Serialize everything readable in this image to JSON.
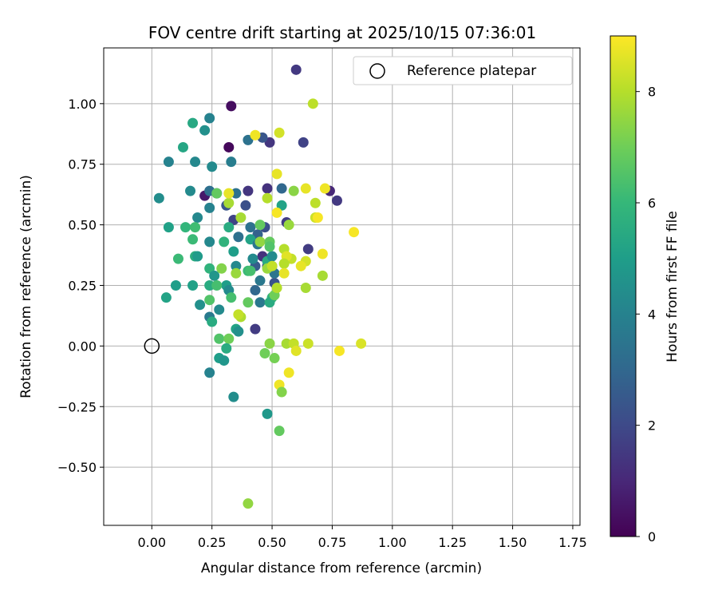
{
  "chart_data": {
    "type": "scatter",
    "title": "FOV centre drift starting at 2025/10/15 07:36:01",
    "xlabel": "Angular distance from reference (arcmin)",
    "ylabel": "Rotation from reference (arcmin)",
    "xlim": [
      -0.2,
      1.78
    ],
    "ylim": [
      -0.74,
      1.23
    ],
    "grid": true,
    "x_ticks": [
      0.0,
      0.25,
      0.5,
      0.75,
      1.0,
      1.25,
      1.5,
      1.75
    ],
    "x_tick_labels": [
      "0.00",
      "0.25",
      "0.50",
      "0.75",
      "1.00",
      "1.25",
      "1.50",
      "1.75"
    ],
    "y_ticks": [
      -0.5,
      -0.25,
      0.0,
      0.25,
      0.5,
      0.75,
      1.0
    ],
    "y_tick_labels": [
      "−0.50",
      "−0.25",
      "0.00",
      "0.25",
      "0.50",
      "0.75",
      "1.00"
    ],
    "legend": {
      "location": "top-right",
      "entries": [
        {
          "label": "Reference platepar",
          "marker": "open-circle"
        }
      ]
    },
    "reference_point": {
      "x": 0.0,
      "y": 0.0
    },
    "colorbar": {
      "label": "Hours from first FF file",
      "range": [
        0,
        9
      ],
      "ticks": [
        0,
        2,
        4,
        6,
        8
      ],
      "tick_labels": [
        "0",
        "2",
        "4",
        "6",
        "8"
      ],
      "colormap": "viridis",
      "stops": [
        "#440154",
        "#482878",
        "#3e4a89",
        "#31688e",
        "#26828e",
        "#1f9e89",
        "#35b779",
        "#6ece58",
        "#b5de2b",
        "#fde725"
      ]
    },
    "points": [
      {
        "x": 0.6,
        "y": 1.14,
        "c": 1.5
      },
      {
        "x": 0.33,
        "y": 0.99,
        "c": 0.3
      },
      {
        "x": 0.32,
        "y": 0.82,
        "c": 0.2
      },
      {
        "x": 0.63,
        "y": 0.84,
        "c": 1.8
      },
      {
        "x": 0.49,
        "y": 0.84,
        "c": 1.4
      },
      {
        "x": 0.46,
        "y": 0.86,
        "c": 2.4
      },
      {
        "x": 0.22,
        "y": 0.62,
        "c": 0.6
      },
      {
        "x": 0.4,
        "y": 0.64,
        "c": 1.4
      },
      {
        "x": 0.48,
        "y": 0.65,
        "c": 1.3
      },
      {
        "x": 0.74,
        "y": 0.64,
        "c": 1.0
      },
      {
        "x": 0.77,
        "y": 0.6,
        "c": 1.5
      },
      {
        "x": 0.56,
        "y": 0.51,
        "c": 1.6
      },
      {
        "x": 0.34,
        "y": 0.52,
        "c": 1.8
      },
      {
        "x": 0.31,
        "y": 0.58,
        "c": 2.4
      },
      {
        "x": 0.39,
        "y": 0.58,
        "c": 2.2
      },
      {
        "x": 0.27,
        "y": 0.63,
        "c": 3.0
      },
      {
        "x": 0.24,
        "y": 0.64,
        "c": 3.3
      },
      {
        "x": 0.35,
        "y": 0.63,
        "c": 3.4
      },
      {
        "x": 0.47,
        "y": 0.49,
        "c": 2.2
      },
      {
        "x": 0.44,
        "y": 0.46,
        "c": 2.8
      },
      {
        "x": 0.36,
        "y": 0.45,
        "c": 3.3
      },
      {
        "x": 0.65,
        "y": 0.4,
        "c": 1.6
      },
      {
        "x": 0.46,
        "y": 0.37,
        "c": 1.3
      },
      {
        "x": 0.48,
        "y": 0.33,
        "c": 2.0
      },
      {
        "x": 0.43,
        "y": 0.33,
        "c": 2.6
      },
      {
        "x": 0.51,
        "y": 0.26,
        "c": 2.3
      },
      {
        "x": 0.45,
        "y": 0.27,
        "c": 3.6
      },
      {
        "x": 0.43,
        "y": 0.23,
        "c": 3.0
      },
      {
        "x": 0.45,
        "y": 0.18,
        "c": 3.6
      },
      {
        "x": 0.43,
        "y": 0.07,
        "c": 1.6
      },
      {
        "x": 0.24,
        "y": 0.94,
        "c": 4.0
      },
      {
        "x": 0.22,
        "y": 0.89,
        "c": 4.5
      },
      {
        "x": 0.17,
        "y": 0.92,
        "c": 5.4
      },
      {
        "x": 0.13,
        "y": 0.82,
        "c": 5.3
      },
      {
        "x": 0.07,
        "y": 0.76,
        "c": 4.0
      },
      {
        "x": 0.18,
        "y": 0.76,
        "c": 4.2
      },
      {
        "x": 0.25,
        "y": 0.74,
        "c": 4.3
      },
      {
        "x": 0.33,
        "y": 0.76,
        "c": 3.8
      },
      {
        "x": 0.4,
        "y": 0.85,
        "c": 3.4
      },
      {
        "x": 0.03,
        "y": 0.61,
        "c": 4.4
      },
      {
        "x": 0.16,
        "y": 0.64,
        "c": 4.3
      },
      {
        "x": 0.24,
        "y": 0.57,
        "c": 4.0
      },
      {
        "x": 0.07,
        "y": 0.49,
        "c": 5.1
      },
      {
        "x": 0.19,
        "y": 0.53,
        "c": 4.2
      },
      {
        "x": 0.14,
        "y": 0.49,
        "c": 5.9
      },
      {
        "x": 0.17,
        "y": 0.44,
        "c": 6.1
      },
      {
        "x": 0.18,
        "y": 0.49,
        "c": 6.2
      },
      {
        "x": 0.24,
        "y": 0.43,
        "c": 4.2
      },
      {
        "x": 0.3,
        "y": 0.43,
        "c": 5.8
      },
      {
        "x": 0.32,
        "y": 0.49,
        "c": 5.5
      },
      {
        "x": 0.34,
        "y": 0.39,
        "c": 5.0
      },
      {
        "x": 0.11,
        "y": 0.36,
        "c": 6.1
      },
      {
        "x": 0.18,
        "y": 0.37,
        "c": 5.6
      },
      {
        "x": 0.19,
        "y": 0.37,
        "c": 4.9
      },
      {
        "x": 0.24,
        "y": 0.32,
        "c": 5.8
      },
      {
        "x": 0.26,
        "y": 0.29,
        "c": 4.7
      },
      {
        "x": 0.35,
        "y": 0.33,
        "c": 4.2
      },
      {
        "x": 0.1,
        "y": 0.25,
        "c": 5.0
      },
      {
        "x": 0.17,
        "y": 0.25,
        "c": 5.1
      },
      {
        "x": 0.24,
        "y": 0.25,
        "c": 5.5
      },
      {
        "x": 0.31,
        "y": 0.25,
        "c": 5.0
      },
      {
        "x": 0.27,
        "y": 0.25,
        "c": 6.3
      },
      {
        "x": 0.32,
        "y": 0.23,
        "c": 4.3
      },
      {
        "x": 0.06,
        "y": 0.2,
        "c": 5.2
      },
      {
        "x": 0.2,
        "y": 0.17,
        "c": 4.5
      },
      {
        "x": 0.24,
        "y": 0.19,
        "c": 6.5
      },
      {
        "x": 0.28,
        "y": 0.15,
        "c": 4.3
      },
      {
        "x": 0.24,
        "y": 0.12,
        "c": 3.7
      },
      {
        "x": 0.25,
        "y": 0.1,
        "c": 5.5
      },
      {
        "x": 0.33,
        "y": 0.2,
        "c": 6.3
      },
      {
        "x": 0.35,
        "y": 0.07,
        "c": 5.2
      },
      {
        "x": 0.36,
        "y": 0.06,
        "c": 4.5
      },
      {
        "x": 0.28,
        "y": 0.03,
        "c": 6.5
      },
      {
        "x": 0.32,
        "y": 0.03,
        "c": 7.0
      },
      {
        "x": 0.31,
        "y": -0.01,
        "c": 5.5
      },
      {
        "x": 0.28,
        "y": -0.05,
        "c": 5.0
      },
      {
        "x": 0.3,
        "y": -0.06,
        "c": 4.7
      },
      {
        "x": 0.24,
        "y": -0.11,
        "c": 4.0
      },
      {
        "x": 0.34,
        "y": -0.21,
        "c": 4.4
      },
      {
        "x": 0.48,
        "y": -0.28,
        "c": 4.8
      },
      {
        "x": 0.4,
        "y": 0.18,
        "c": 6.8
      },
      {
        "x": 0.42,
        "y": 0.36,
        "c": 4.3
      },
      {
        "x": 0.4,
        "y": 0.31,
        "c": 6.1
      },
      {
        "x": 0.48,
        "y": 0.35,
        "c": 5.5
      },
      {
        "x": 0.5,
        "y": 0.37,
        "c": 4.3
      },
      {
        "x": 0.5,
        "y": 0.33,
        "c": 3.8
      },
      {
        "x": 0.51,
        "y": 0.3,
        "c": 3.5
      },
      {
        "x": 0.41,
        "y": 0.44,
        "c": 5.2
      },
      {
        "x": 0.44,
        "y": 0.42,
        "c": 3.5
      },
      {
        "x": 0.54,
        "y": 0.58,
        "c": 5.2
      },
      {
        "x": 0.54,
        "y": 0.65,
        "c": 3.0
      },
      {
        "x": 0.41,
        "y": 0.49,
        "c": 3.4
      },
      {
        "x": 0.45,
        "y": 0.5,
        "c": 6.8
      },
      {
        "x": 0.45,
        "y": 0.43,
        "c": 7.5
      },
      {
        "x": 0.49,
        "y": 0.43,
        "c": 6.8
      },
      {
        "x": 0.49,
        "y": 0.41,
        "c": 6.5
      },
      {
        "x": 0.5,
        "y": 0.2,
        "c": 5.8
      },
      {
        "x": 0.49,
        "y": 0.18,
        "c": 5.5
      },
      {
        "x": 0.51,
        "y": 0.21,
        "c": 7.0
      },
      {
        "x": 0.29,
        "y": 0.32,
        "c": 7.3
      },
      {
        "x": 0.35,
        "y": 0.3,
        "c": 7.6
      },
      {
        "x": 0.37,
        "y": 0.12,
        "c": 7.9
      },
      {
        "x": 0.36,
        "y": 0.13,
        "c": 8.2
      },
      {
        "x": 0.32,
        "y": 0.59,
        "c": 7.8
      },
      {
        "x": 0.32,
        "y": 0.63,
        "c": 8.7
      },
      {
        "x": 0.27,
        "y": 0.63,
        "c": 6.8
      },
      {
        "x": 0.37,
        "y": 0.53,
        "c": 7.8
      },
      {
        "x": 0.41,
        "y": 0.31,
        "c": 6.3
      },
      {
        "x": 0.48,
        "y": 0.32,
        "c": 7.6
      },
      {
        "x": 0.5,
        "y": 0.33,
        "c": 8.2
      },
      {
        "x": 0.52,
        "y": 0.24,
        "c": 8.0
      },
      {
        "x": 0.57,
        "y": 0.5,
        "c": 7.6
      },
      {
        "x": 0.48,
        "y": 0.61,
        "c": 8.0
      },
      {
        "x": 0.52,
        "y": 0.55,
        "c": 8.9
      },
      {
        "x": 0.52,
        "y": 0.71,
        "c": 8.7
      },
      {
        "x": 0.43,
        "y": 0.87,
        "c": 8.8
      },
      {
        "x": 0.53,
        "y": 0.88,
        "c": 8.4
      },
      {
        "x": 0.67,
        "y": 1.0,
        "c": 8.1
      },
      {
        "x": 0.59,
        "y": 0.64,
        "c": 7.4
      },
      {
        "x": 0.64,
        "y": 0.65,
        "c": 8.7
      },
      {
        "x": 0.68,
        "y": 0.59,
        "c": 8.1
      },
      {
        "x": 0.68,
        "y": 0.53,
        "c": 8.3
      },
      {
        "x": 0.69,
        "y": 0.53,
        "c": 8.9
      },
      {
        "x": 0.72,
        "y": 0.65,
        "c": 8.8
      },
      {
        "x": 0.84,
        "y": 0.47,
        "c": 8.9
      },
      {
        "x": 0.71,
        "y": 0.38,
        "c": 8.8
      },
      {
        "x": 0.64,
        "y": 0.35,
        "c": 8.4
      },
      {
        "x": 0.62,
        "y": 0.33,
        "c": 8.7
      },
      {
        "x": 0.58,
        "y": 0.36,
        "c": 8.2
      },
      {
        "x": 0.55,
        "y": 0.4,
        "c": 8.0
      },
      {
        "x": 0.56,
        "y": 0.37,
        "c": 8.6
      },
      {
        "x": 0.55,
        "y": 0.34,
        "c": 8.0
      },
      {
        "x": 0.55,
        "y": 0.3,
        "c": 8.7
      },
      {
        "x": 0.71,
        "y": 0.29,
        "c": 7.8
      },
      {
        "x": 0.64,
        "y": 0.24,
        "c": 7.8
      },
      {
        "x": 0.49,
        "y": 0.01,
        "c": 7.4
      },
      {
        "x": 0.56,
        "y": 0.01,
        "c": 7.8
      },
      {
        "x": 0.59,
        "y": 0.01,
        "c": 8.2
      },
      {
        "x": 0.6,
        "y": -0.02,
        "c": 8.6
      },
      {
        "x": 0.65,
        "y": 0.01,
        "c": 8.3
      },
      {
        "x": 0.78,
        "y": -0.02,
        "c": 8.9
      },
      {
        "x": 0.87,
        "y": 0.01,
        "c": 8.5
      },
      {
        "x": 0.47,
        "y": -0.03,
        "c": 7.0
      },
      {
        "x": 0.51,
        "y": -0.05,
        "c": 7.1
      },
      {
        "x": 0.57,
        "y": -0.11,
        "c": 8.8
      },
      {
        "x": 0.53,
        "y": -0.16,
        "c": 8.8
      },
      {
        "x": 0.54,
        "y": -0.19,
        "c": 7.3
      },
      {
        "x": 0.53,
        "y": -0.35,
        "c": 6.8
      },
      {
        "x": 0.4,
        "y": -0.65,
        "c": 7.5
      }
    ]
  }
}
